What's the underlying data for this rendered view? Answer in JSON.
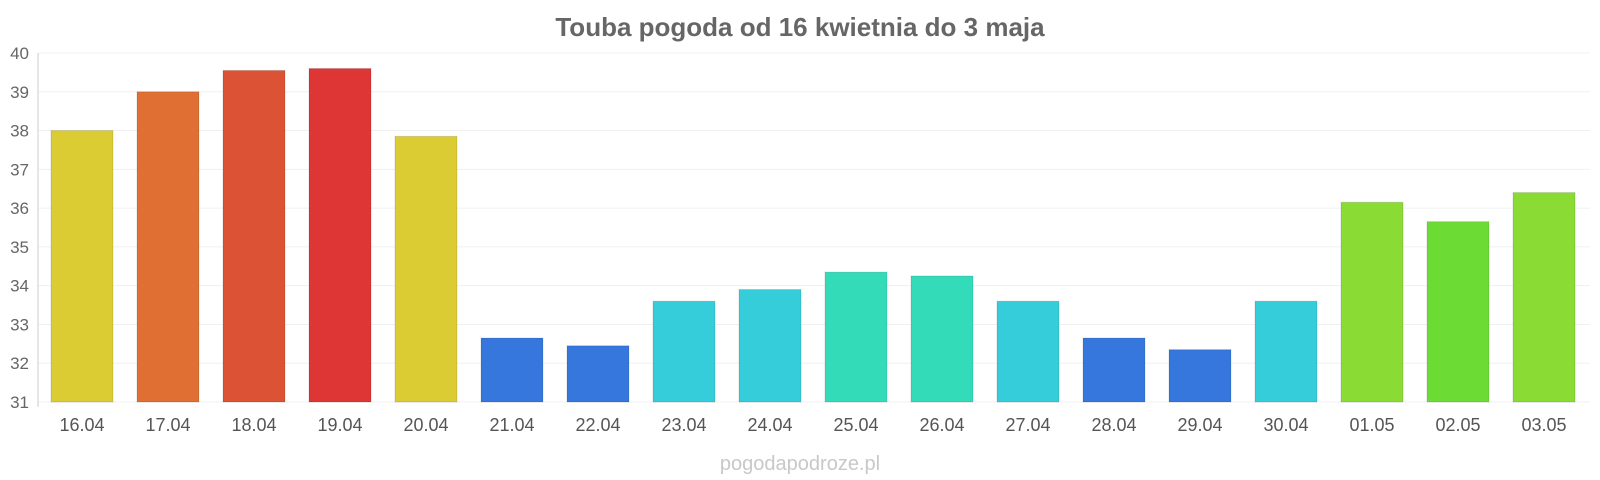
{
  "chart_data": {
    "type": "bar",
    "title": "Touba pogoda od 16 kwietnia do 3 maja",
    "xlabel": "",
    "ylabel": "",
    "ylim": [
      31,
      40
    ],
    "yticks": [
      31,
      32,
      33,
      34,
      35,
      36,
      37,
      38,
      39,
      40
    ],
    "grid": true,
    "categories": [
      "16.04",
      "17.04",
      "18.04",
      "19.04",
      "20.04",
      "21.04",
      "22.04",
      "23.04",
      "24.04",
      "25.04",
      "26.04",
      "27.04",
      "28.04",
      "29.04",
      "30.04",
      "01.05",
      "02.05",
      "03.05"
    ],
    "values": [
      38.0,
      39.0,
      39.55,
      39.6,
      37.85,
      32.65,
      32.45,
      33.6,
      33.9,
      34.35,
      34.25,
      33.6,
      32.65,
      32.35,
      33.6,
      36.15,
      35.65,
      36.4
    ],
    "colors": [
      "#dbcc33",
      "#df6f33",
      "#dc5234",
      "#de3535",
      "#dbcc33",
      "#3577dc",
      "#3577dc",
      "#35cdd9",
      "#35cdd9",
      "#33dbb8",
      "#33dbb8",
      "#35cdd9",
      "#3577dc",
      "#3577dc",
      "#35cdd9",
      "#8adb33",
      "#6cdc35",
      "#8adb33"
    ]
  },
  "footer": "pogodapodroze.pl"
}
